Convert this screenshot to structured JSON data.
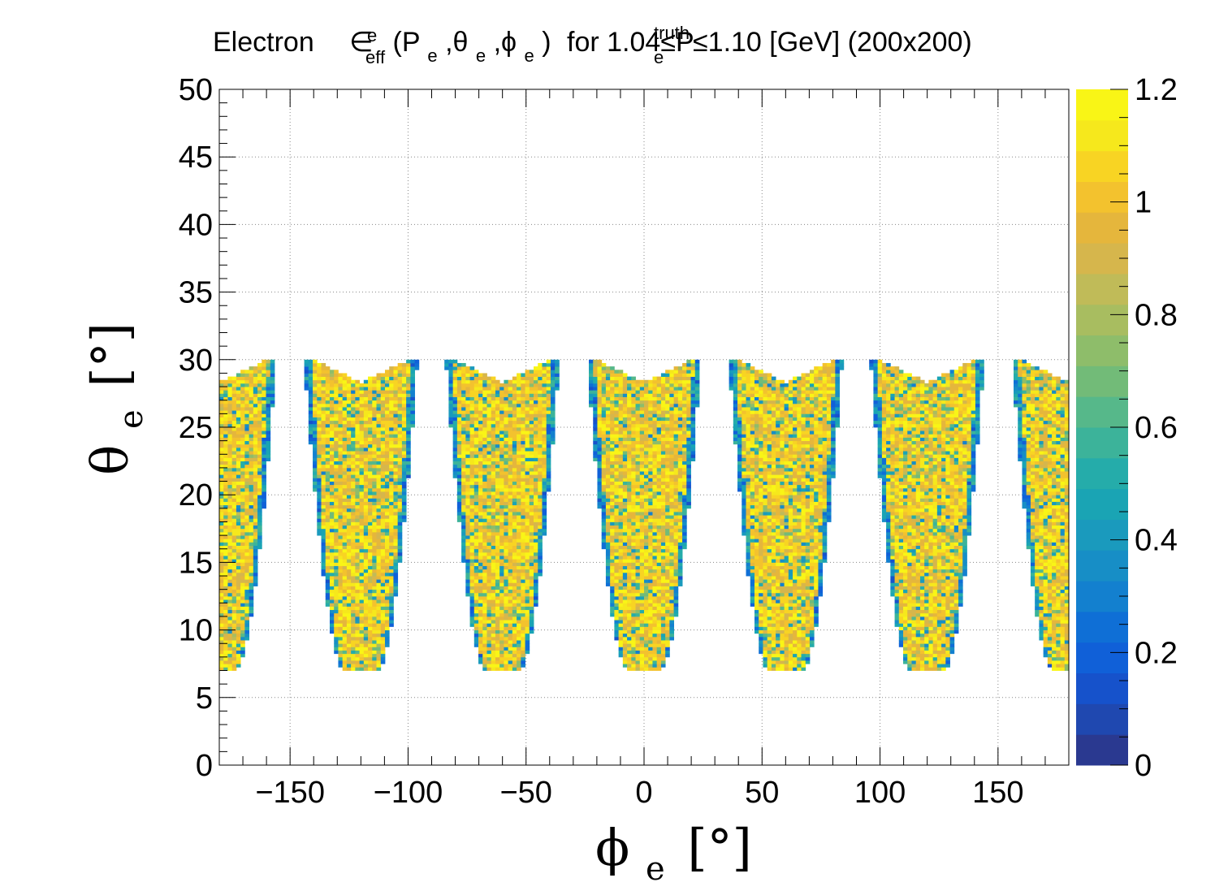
{
  "chart_data": {
    "type": "heatmap",
    "title": {
      "prefix": "Electron",
      "eps": "∈",
      "eps_sup": "e",
      "eps_sub": "eff",
      "args": "(P",
      "args_sub1": "e",
      "args_mid1": ",θ",
      "args_sub2": "e",
      "args_mid2": ",ϕ",
      "args_sub3": "e",
      "args_close": ")",
      "range_text": "for 1.04≤P",
      "range_sup": "truth",
      "range_sub": "e",
      "range_end": "≤1.10 [GeV] (200x200)"
    },
    "xlabel": {
      "symbol": "ϕ",
      "sub": "e",
      "unit": "[°]"
    },
    "ylabel": {
      "symbol": "θ",
      "sub": "e",
      "unit": "[°]"
    },
    "xlim": [
      -180,
      180
    ],
    "ylim": [
      0,
      50
    ],
    "zlim": [
      0,
      1.2
    ],
    "grid": true,
    "bins": [
      200,
      200
    ],
    "x_ticks": [
      "−150",
      "−100",
      "−50",
      "0",
      "50",
      "100",
      "150"
    ],
    "x_tick_values": [
      -150,
      -100,
      -50,
      0,
      50,
      100,
      150
    ],
    "y_ticks": [
      "0",
      "5",
      "10",
      "15",
      "20",
      "25",
      "30",
      "35",
      "40",
      "45",
      "50"
    ],
    "y_tick_values": [
      0,
      5,
      10,
      15,
      20,
      25,
      30,
      35,
      40,
      45,
      50
    ],
    "z_ticks": [
      "0",
      "0.2",
      "0.4",
      "0.6",
      "0.8",
      "1",
      "1.2"
    ],
    "z_tick_values": [
      0,
      0.2,
      0.4,
      0.6,
      0.8,
      1.0,
      1.2
    ],
    "sectors": [
      {
        "center": -180,
        "theta_min": 7,
        "theta_max": 30
      },
      {
        "center": -120,
        "theta_min": 7,
        "theta_max": 30
      },
      {
        "center": -60,
        "theta_min": 7,
        "theta_max": 30
      },
      {
        "center": 0,
        "theta_min": 7,
        "theta_max": 30
      },
      {
        "center": 60,
        "theta_min": 7,
        "theta_max": 30
      },
      {
        "center": 120,
        "theta_min": 7,
        "theta_max": 30
      },
      {
        "center": 180,
        "theta_min": 7,
        "theta_max": 30
      }
    ],
    "typical_efficiency": 1.0,
    "colors": {
      "palette": [
        "#2a3990",
        "#1f48b0",
        "#1652cb",
        "#1060d8",
        "#0f6fd6",
        "#1380cf",
        "#178ec6",
        "#1a9abd",
        "#1aa4b4",
        "#25acaa",
        "#3cb39a",
        "#56b88a",
        "#72bb78",
        "#8ebd6a",
        "#a8bd60",
        "#c0bb58",
        "#d6b64c",
        "#e5b63c",
        "#f3c22e",
        "#f8d423",
        "#f6e81c",
        "#f9f516"
      ],
      "gap": "#ffffff"
    }
  }
}
